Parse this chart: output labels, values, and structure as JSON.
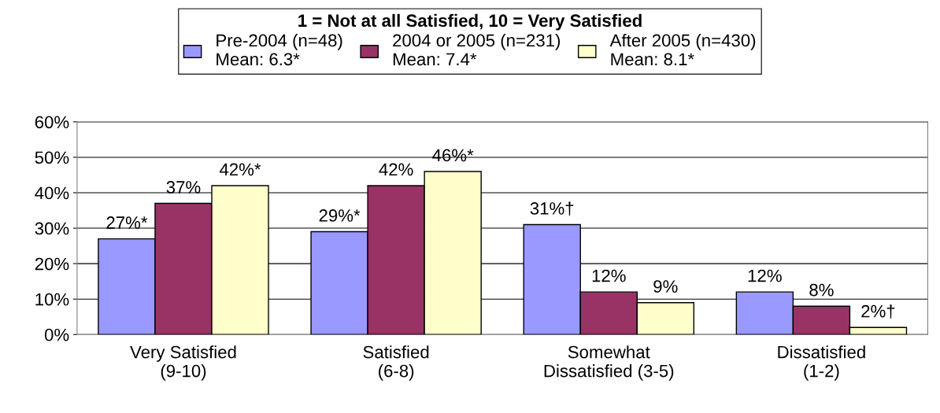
{
  "chart_data": {
    "type": "bar",
    "legend_title": "1 = Not at all Satisfied, 10 = Very Satisfied",
    "categories": [
      "Very Satisfied\n(9-10)",
      "Satisfied\n(6-8)",
      "Somewhat\nDissatisfied (3-5)",
      "Dissatisfied\n(1-2)"
    ],
    "series": [
      {
        "name": "Pre-2004 (n=48)\nMean: 6.3*",
        "color": "#9999ff",
        "values": [
          27,
          29,
          31,
          12
        ],
        "value_labels": [
          "27%*",
          "29%*",
          "31%†",
          "12%"
        ]
      },
      {
        "name": "2004 or 2005 (n=231)\nMean: 7.4*",
        "color": "#993366",
        "values": [
          37,
          42,
          12,
          8
        ],
        "value_labels": [
          "37%",
          "42%",
          "12%",
          "8%"
        ]
      },
      {
        "name": "After 2005 (n=430)\nMean: 8.1*",
        "color": "#ffffcc",
        "values": [
          42,
          46,
          9,
          2
        ],
        "value_labels": [
          "42%*",
          "46%*",
          "9%",
          "2%†"
        ]
      }
    ],
    "ylim": [
      0,
      60
    ],
    "yticks": [
      {
        "value": 0,
        "label": "0%"
      },
      {
        "value": 10,
        "label": "10%"
      },
      {
        "value": 20,
        "label": "20%"
      },
      {
        "value": 30,
        "label": "30%"
      },
      {
        "value": 40,
        "label": "40%"
      },
      {
        "value": 50,
        "label": "50%"
      },
      {
        "value": 60,
        "label": "60%"
      }
    ],
    "grid": "y",
    "legend": "top"
  }
}
